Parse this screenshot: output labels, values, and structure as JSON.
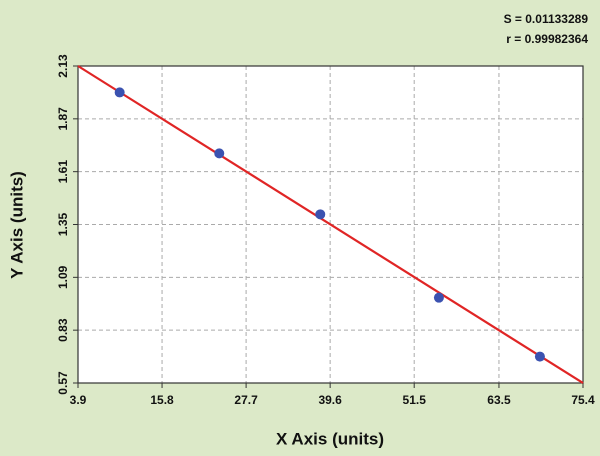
{
  "chart_data": {
    "type": "scatter",
    "annotations": [
      "S = 0.01133289",
      "r = 0.99982364"
    ],
    "xlabel": "X Axis (units)",
    "ylabel": "Y Axis (units)",
    "x": [
      9.8,
      23.9,
      38.2,
      55.0,
      69.3
    ],
    "values": [
      2.0,
      1.7,
      1.4,
      0.99,
      0.7
    ],
    "color": "#3b52b0",
    "fit": {
      "x": [
        3.9,
        75.4
      ],
      "values": [
        2.13,
        0.57
      ],
      "color": "#e02525"
    },
    "xlim": [
      3.9,
      75.4
    ],
    "ylim": [
      0.57,
      2.13
    ],
    "xticks": [
      3.9,
      15.8,
      27.7,
      39.6,
      51.5,
      63.5,
      75.4
    ],
    "yticks": [
      0.57,
      0.83,
      1.09,
      1.35,
      1.61,
      1.87,
      2.13
    ],
    "grid": true
  }
}
